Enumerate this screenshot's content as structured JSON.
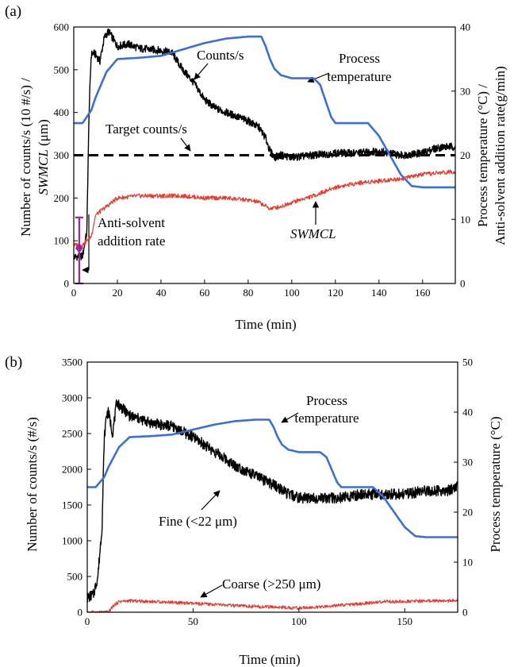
{
  "chart_data": [
    {
      "type": "line",
      "panel_label": "(a)",
      "xlabel": "Time (min)",
      "ylabel_left_line1": "Number of counts/s (10 #/s) /",
      "ylabel_left_line2": "SWMCL",
      "ylabel_left_line2_unit": " (μm)",
      "ylabel_right_line1": "Process temperature (°C) /",
      "ylabel_right_line2": "Anti-solvent addition rate(g/min)",
      "xlim": [
        0,
        175
      ],
      "ylim_left": [
        0,
        600
      ],
      "ylim_right": [
        0,
        40
      ],
      "x_ticks": [
        "0",
        "20",
        "40",
        "60",
        "80",
        "100",
        "120",
        "140",
        "160"
      ],
      "y_left_ticks": [
        "0",
        "100",
        "200",
        "300",
        "400",
        "500",
        "600"
      ],
      "y_right_ticks": [
        "0",
        "10",
        "20",
        "30",
        "40"
      ],
      "colors": {
        "counts": "#000000",
        "temperature": "#3a6fd8",
        "swmcl": "#e8392f",
        "antisolvent": "#a2259a"
      },
      "series": [
        {
          "name": "Counts/s",
          "axis": "left",
          "x": [
            0,
            4,
            6,
            7,
            8,
            9,
            10,
            12,
            14,
            16,
            20,
            25,
            30,
            40,
            45,
            50,
            55,
            60,
            65,
            70,
            75,
            80,
            85,
            88,
            90,
            92,
            95,
            100,
            110,
            120,
            130,
            140,
            150,
            160,
            165,
            170,
            175
          ],
          "y": [
            62,
            64,
            120,
            400,
            535,
            540,
            535,
            520,
            575,
            590,
            555,
            560,
            550,
            545,
            540,
            500,
            470,
            430,
            410,
            400,
            390,
            380,
            365,
            340,
            310,
            295,
            300,
            295,
            300,
            305,
            305,
            310,
            300,
            305,
            315,
            320,
            320
          ]
        },
        {
          "name": "Process temperature",
          "axis": "right",
          "x": [
            0,
            4,
            6,
            8,
            10,
            15,
            20,
            30,
            40,
            50,
            60,
            70,
            80,
            86,
            88,
            90,
            92,
            95,
            100,
            110,
            113,
            115,
            118,
            120,
            130,
            135,
            140,
            145,
            150,
            155,
            160,
            170,
            175
          ],
          "y": [
            25,
            25,
            26,
            27,
            29,
            33,
            35,
            35.2,
            35.5,
            36.5,
            37.5,
            38.2,
            38.5,
            38.5,
            37,
            35,
            33.5,
            32.5,
            32,
            32,
            31,
            29,
            26,
            25,
            25,
            25,
            23,
            20,
            17,
            15.2,
            15,
            15,
            15
          ]
        },
        {
          "name": "SWMCL",
          "axis": "left",
          "x": [
            0,
            4,
            6,
            8,
            10,
            15,
            20,
            30,
            40,
            50,
            60,
            70,
            80,
            85,
            90,
            95,
            100,
            110,
            120,
            130,
            140,
            150,
            160,
            170,
            175
          ],
          "y": [
            90,
            90,
            100,
            110,
            160,
            180,
            200,
            205,
            205,
            205,
            200,
            200,
            195,
            190,
            175,
            180,
            190,
            205,
            225,
            235,
            240,
            245,
            255,
            260,
            262
          ]
        },
        {
          "name": "Anti-solvent addition rate",
          "axis": "right",
          "x": [
            2,
            3
          ],
          "y": [
            0,
            10.3
          ],
          "marker": "errorbar-center",
          "center": [
            2.5,
            5.5
          ]
        },
        {
          "name": "Target counts/s",
          "axis": "left",
          "x": [
            0,
            175
          ],
          "y": [
            300,
            300
          ],
          "style": "dashed"
        }
      ],
      "annotations": {
        "counts": "Counts/s",
        "temp_line1": "Process",
        "temp_line2": "temperature",
        "target": "Target counts/s",
        "swmcl": "SWMCL",
        "anti_line1": "Anti-solvent",
        "anti_line2": "addition rate"
      }
    },
    {
      "type": "line",
      "panel_label": "(b)",
      "xlabel": "Time (min)",
      "ylabel_left": "Number of counts/s (#/s)",
      "ylabel_right": "Process temperature (°C)",
      "xlim": [
        0,
        175
      ],
      "ylim_left": [
        0,
        3500
      ],
      "ylim_right": [
        0,
        50
      ],
      "x_ticks": [
        "0",
        "50",
        "100",
        "150"
      ],
      "y_left_ticks": [
        "0",
        "500",
        "1000",
        "1500",
        "2000",
        "2500",
        "3000",
        "3500"
      ],
      "y_right_ticks": [
        "0",
        "10",
        "20",
        "30",
        "40",
        "50"
      ],
      "colors": {
        "fine": "#000000",
        "temperature": "#3a6fd8",
        "coarse": "#e8392f"
      },
      "series": [
        {
          "name": "Fine (<22 μm)",
          "axis": "left",
          "x": [
            0,
            3,
            5,
            7,
            8,
            9,
            10,
            12,
            14,
            15,
            20,
            30,
            40,
            50,
            60,
            70,
            80,
            90,
            95,
            100,
            110,
            120,
            130,
            140,
            150,
            160,
            170,
            175
          ],
          "y": [
            200,
            250,
            500,
            1200,
            2400,
            2750,
            2800,
            2500,
            2950,
            2900,
            2750,
            2650,
            2600,
            2450,
            2250,
            2050,
            1900,
            1750,
            1650,
            1600,
            1600,
            1600,
            1650,
            1650,
            1650,
            1700,
            1700,
            1750
          ]
        },
        {
          "name": "Process temperature",
          "axis": "right",
          "x": [
            0,
            4,
            6,
            8,
            10,
            15,
            20,
            30,
            40,
            50,
            60,
            70,
            80,
            86,
            88,
            90,
            92,
            95,
            100,
            110,
            113,
            115,
            118,
            120,
            130,
            135,
            140,
            145,
            150,
            155,
            160,
            170,
            175
          ],
          "y": [
            25,
            25,
            26,
            27,
            29,
            33,
            35,
            35.2,
            35.5,
            36.5,
            37.5,
            38.2,
            38.5,
            38.5,
            37,
            35,
            33.5,
            32.5,
            32,
            32,
            31,
            29,
            26,
            25,
            25,
            25,
            23,
            20,
            17,
            15.2,
            15,
            15,
            15
          ]
        },
        {
          "name": "Coarse (>250 μm)",
          "axis": "left",
          "x": [
            0,
            10,
            12,
            15,
            20,
            30,
            40,
            50,
            60,
            70,
            80,
            90,
            100,
            110,
            120,
            130,
            140,
            150,
            160,
            170,
            175
          ],
          "y": [
            0,
            0,
            80,
            150,
            160,
            150,
            140,
            120,
            110,
            90,
            80,
            70,
            60,
            70,
            100,
            120,
            150,
            150,
            160,
            160,
            165
          ]
        }
      ],
      "annotations": {
        "temp_line1": "Process",
        "temp_line2": "temperature",
        "fine": "Fine (<22 μm)",
        "coarse": "Coarse (>250 μm)"
      }
    }
  ]
}
